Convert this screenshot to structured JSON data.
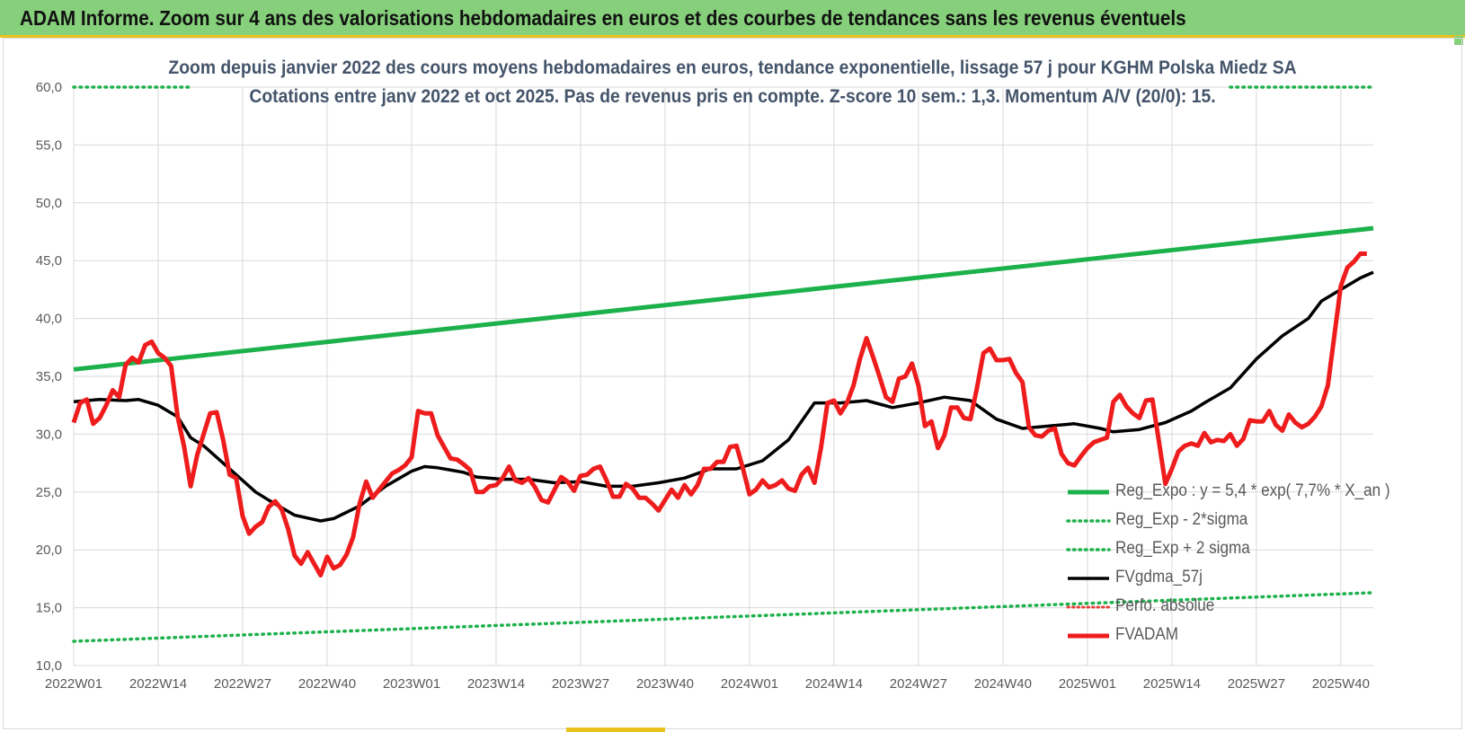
{
  "banner": {
    "title": "ADAM Informe. Zoom sur 4 ans des valorisations hebdomadaires en euros et des courbes de tendances sans les revenus éventuels"
  },
  "chart_data": {
    "type": "line",
    "title": "Zoom depuis janvier 2022 des cours moyens hebdomadaires en euros, tendance exponentielle, lissage 57 j pour KGHM Polska Miedz SA",
    "subtitle": "Cotations entre janv 2022 et oct 2025. Pas de revenus pris en compte. Z-score 10 sem.: 1,3. Momentum A/V (20/0): 15.",
    "xlabel": "",
    "ylabel": "",
    "ylim": [
      10,
      60
    ],
    "yticks": [
      "10,0",
      "15,0",
      "20,0",
      "25,0",
      "30,0",
      "35,0",
      "40,0",
      "45,0",
      "50,0",
      "55,0",
      "60,0"
    ],
    "xticks": [
      "2022W01",
      "2022W14",
      "2022W27",
      "2022W40",
      "2023W01",
      "2023W14",
      "2023W27",
      "2023W40",
      "2024W01",
      "2024W14",
      "2024W27",
      "2024W40",
      "2025W01",
      "2025W14",
      "2025W27",
      "2025W40"
    ],
    "x_range_weeks": [
      0,
      200
    ],
    "grid": "vertical-and-horizontal",
    "legend_position": "bottom-right",
    "series": [
      {
        "name": "Reg_Expo : y = 5,4 * exp( 7,7% *  X_an )",
        "style": "solid-thick",
        "color": "#1db14b",
        "x": [
          0,
          200
        ],
        "y": [
          35.6,
          47.8
        ]
      },
      {
        "name": "Reg_Exp - 2*sigma",
        "style": "dotted",
        "color": "#1db14b",
        "x": [
          0,
          200
        ],
        "y": [
          12.1,
          16.3
        ]
      },
      {
        "name": "Reg_Exp + 2 sigma",
        "style": "dotted",
        "color": "#1db14b",
        "x": [
          0,
          18,
          178,
          200
        ],
        "y": [
          60,
          60,
          60,
          60
        ],
        "segments": [
          [
            0,
            18
          ],
          [
            178,
            200
          ]
        ]
      },
      {
        "name": "FVgdma_57j",
        "style": "solid",
        "color": "#000000",
        "x": [
          0,
          4,
          8,
          10,
          13,
          16,
          18,
          20,
          24,
          28,
          30,
          34,
          38,
          40,
          44,
          48,
          52,
          54,
          56,
          60,
          62,
          66,
          70,
          74,
          78,
          82,
          86,
          90,
          94,
          98,
          102,
          106,
          110,
          114,
          118,
          122,
          126,
          130,
          134,
          138,
          142,
          146,
          150,
          154,
          158,
          160,
          164,
          168,
          172,
          174,
          178,
          182,
          186,
          190,
          192,
          195,
          198,
          200
        ],
        "y": [
          32.8,
          33.0,
          32.9,
          33.0,
          32.5,
          31.5,
          29.7,
          29.0,
          27.0,
          25.0,
          24.3,
          23.0,
          22.5,
          22.7,
          23.8,
          25.5,
          26.8,
          27.2,
          27.1,
          26.7,
          26.3,
          26.1,
          26.1,
          25.8,
          25.9,
          25.5,
          25.5,
          25.8,
          26.2,
          27.0,
          27.0,
          27.7,
          29.5,
          32.7,
          32.7,
          32.9,
          32.3,
          32.7,
          33.2,
          32.9,
          31.3,
          30.5,
          30.7,
          30.9,
          30.5,
          30.2,
          30.4,
          31.0,
          32.0,
          32.7,
          34.0,
          36.5,
          38.5,
          40.0,
          41.5,
          42.5,
          43.5,
          44.0
        ]
      },
      {
        "name": "Perfo. absolue",
        "style": "dotted",
        "color": "#e8413b",
        "x": [],
        "y": []
      },
      {
        "name": "FVADAM",
        "style": "solid-thick",
        "color": "#ee1c1c",
        "x": [
          0,
          1,
          2,
          3,
          4,
          5,
          6,
          7,
          8,
          9,
          10,
          11,
          12,
          13,
          14,
          15,
          16,
          17,
          18,
          19,
          20,
          21,
          22,
          23,
          24,
          25,
          26,
          27,
          28,
          29,
          30,
          31,
          32,
          33,
          34,
          35,
          36,
          37,
          38,
          39,
          40,
          41,
          42,
          43,
          44,
          45,
          46,
          47,
          48,
          49,
          50,
          51,
          52,
          53,
          54,
          55,
          56,
          57,
          58,
          59,
          60,
          61,
          62,
          63,
          64,
          65,
          66,
          67,
          68,
          69,
          70,
          71,
          72,
          73,
          74,
          75,
          76,
          77,
          78,
          79,
          80,
          81,
          82,
          83,
          84,
          85,
          86,
          87,
          88,
          89,
          90,
          91,
          92,
          93,
          94,
          95,
          96,
          97,
          98,
          99,
          100,
          101,
          102,
          103,
          104,
          105,
          106,
          107,
          108,
          109,
          110,
          111,
          112,
          113,
          114,
          115,
          116,
          117,
          118,
          119,
          120,
          121,
          122,
          123,
          124,
          125,
          126,
          127,
          128,
          129,
          130,
          131,
          132,
          133,
          134,
          135,
          136,
          137,
          138,
          139,
          140,
          141,
          142,
          143,
          144,
          145,
          146,
          147,
          148,
          149,
          150,
          151,
          152,
          153,
          154,
          155,
          156,
          157,
          158,
          159,
          160,
          161,
          162,
          163,
          164,
          165,
          166,
          167,
          168,
          169,
          170,
          171,
          172,
          173,
          174,
          175,
          176,
          177,
          178,
          179,
          180,
          181,
          182,
          183,
          184,
          185,
          186,
          187,
          188,
          189,
          190,
          191,
          192,
          193,
          194,
          195,
          196,
          197,
          198,
          199
        ],
        "y": [
          31.0,
          32.7,
          33.0,
          30.9,
          31.4,
          32.5,
          33.8,
          33.2,
          36.0,
          36.6,
          36.2,
          37.7,
          38.0,
          37.0,
          36.6,
          35.9,
          31.5,
          28.9,
          25.5,
          28.2,
          30.0,
          31.8,
          31.9,
          29.5,
          26.5,
          26.2,
          22.9,
          21.4,
          22.0,
          22.4,
          23.7,
          24.2,
          23.5,
          21.8,
          19.5,
          18.8,
          19.8,
          18.8,
          17.8,
          19.4,
          18.4,
          18.7,
          19.6,
          21.1,
          24.0,
          25.9,
          24.5,
          25.2,
          25.9,
          26.6,
          26.9,
          27.3,
          28.0,
          32.0,
          31.8,
          31.8,
          29.9,
          28.9,
          27.9,
          27.8,
          27.4,
          26.9,
          25.0,
          25.0,
          25.5,
          25.6,
          26.2,
          27.2,
          26.0,
          25.8,
          26.2,
          25.4,
          24.3,
          24.1,
          25.2,
          26.3,
          25.9,
          25.1,
          26.4,
          26.5,
          27.0,
          27.2,
          26.0,
          24.6,
          24.6,
          25.7,
          25.3,
          24.5,
          24.5,
          24.0,
          23.4,
          24.3,
          25.2,
          24.5,
          25.6,
          24.8,
          25.6,
          27.0,
          27.0,
          27.6,
          27.6,
          28.9,
          29.0,
          27.0,
          24.8,
          25.2,
          26.0,
          25.4,
          25.6,
          26.0,
          25.3,
          25.1,
          26.5,
          27.1,
          25.8,
          28.8,
          32.7,
          32.9,
          31.8,
          32.7,
          34.2,
          36.5,
          38.3,
          36.7,
          35.0,
          33.2,
          32.8,
          34.8,
          35.0,
          36.1,
          34.2,
          30.7,
          31.1,
          28.8,
          29.9,
          32.3,
          32.3,
          31.4,
          31.3,
          34.0,
          37.0,
          37.4,
          36.4,
          36.4,
          36.5,
          35.3,
          34.5,
          30.6,
          29.9,
          29.8,
          30.3,
          30.5,
          28.3,
          27.5,
          27.3,
          28.1,
          28.8,
          29.3,
          29.5,
          29.7,
          32.8,
          33.4,
          32.4,
          31.8,
          31.4,
          32.9,
          33.0,
          29.4,
          25.7,
          27.0,
          28.5,
          29.0,
          29.2,
          29.0,
          30.1,
          29.3,
          29.5,
          29.4,
          30.0,
          29.0,
          29.6,
          31.2,
          31.1,
          31.1,
          32.0,
          30.8,
          30.3,
          31.7,
          31.0,
          30.6,
          30.9,
          31.5,
          32.4,
          34.2,
          38.5,
          42.8,
          44.4,
          44.9,
          45.6,
          45.6
        ]
      }
    ]
  }
}
